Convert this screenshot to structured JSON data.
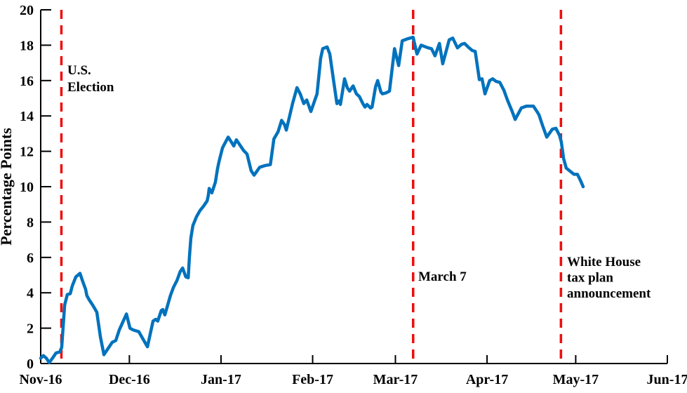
{
  "chart_data": {
    "type": "line",
    "title": "",
    "xlabel": "",
    "ylabel": "Percentage Points",
    "x_unit": "days since Nov 1, 2016",
    "xlim": [
      0,
      212
    ],
    "ylim": [
      0,
      20
    ],
    "grid": false,
    "legend": null,
    "colors": {
      "line": "#0072BD",
      "event_line": "#EE0E0E",
      "axis": "#000000",
      "text": "#000000",
      "background": "#FFFFFF"
    },
    "y_ticks": [
      0,
      2,
      4,
      6,
      8,
      10,
      12,
      14,
      16,
      18,
      20
    ],
    "x_ticks": [
      {
        "day": 0,
        "label": "Nov-16"
      },
      {
        "day": 30,
        "label": "Dec-16"
      },
      {
        "day": 61,
        "label": "Jan-17"
      },
      {
        "day": 92,
        "label": "Feb-17"
      },
      {
        "day": 120,
        "label": "Mar-17"
      },
      {
        "day": 151,
        "label": "Apr-17"
      },
      {
        "day": 181,
        "label": "May-17"
      },
      {
        "day": 212,
        "label": "Jun-17"
      }
    ],
    "events": [
      {
        "day": 7,
        "label_lines": [
          "U.S.",
          "Election"
        ]
      },
      {
        "day": 126,
        "label_lines": [
          "March 7"
        ]
      },
      {
        "day": 176,
        "label_lines": [
          "White House",
          "tax plan",
          "announcement"
        ]
      }
    ],
    "series": [
      {
        "name": "percentage-points-line",
        "points": [
          [
            0,
            0.3
          ],
          [
            0.9,
            0.45
          ],
          [
            1.9,
            0.3
          ],
          [
            2.9,
            0.05
          ],
          [
            4,
            0.3
          ],
          [
            5.2,
            0.6
          ],
          [
            6.4,
            0.65
          ],
          [
            7.1,
            0.9
          ],
          [
            8.1,
            3.3
          ],
          [
            9,
            3.9
          ],
          [
            10,
            3.95
          ],
          [
            10.7,
            4.4
          ],
          [
            11.9,
            4.9
          ],
          [
            13.3,
            5.1
          ],
          [
            14.2,
            4.65
          ],
          [
            15.2,
            4.2
          ],
          [
            15.6,
            3.85
          ],
          [
            16.4,
            3.6
          ],
          [
            17.6,
            3.3
          ],
          [
            19,
            2.9
          ],
          [
            20.2,
            1.5
          ],
          [
            21.4,
            0.5
          ],
          [
            23,
            0.9
          ],
          [
            24.2,
            1.2
          ],
          [
            25.4,
            1.3
          ],
          [
            26.6,
            1.9
          ],
          [
            29,
            2.8
          ],
          [
            30.2,
            2
          ],
          [
            31.3,
            1.9
          ],
          [
            33.2,
            1.8
          ],
          [
            34.9,
            1.3
          ],
          [
            36.1,
            0.95
          ],
          [
            38,
            2.4
          ],
          [
            38.9,
            2.5
          ],
          [
            39.6,
            2.4
          ],
          [
            40.8,
            3
          ],
          [
            41.3,
            3.05
          ],
          [
            42,
            2.75
          ],
          [
            43.9,
            3.85
          ],
          [
            44.9,
            4.3
          ],
          [
            46.1,
            4.7
          ],
          [
            47.2,
            5.2
          ],
          [
            48,
            5.4
          ],
          [
            49.1,
            4.9
          ],
          [
            49.9,
            4.85
          ],
          [
            50.3,
            6
          ],
          [
            50.8,
            7.1
          ],
          [
            51.5,
            7.8
          ],
          [
            52.7,
            8.3
          ],
          [
            53.9,
            8.65
          ],
          [
            55.1,
            8.9
          ],
          [
            56.3,
            9.2
          ],
          [
            56.7,
            9.5
          ],
          [
            57,
            9.9
          ],
          [
            57.9,
            9.65
          ],
          [
            59.1,
            10.25
          ],
          [
            59.8,
            11
          ],
          [
            60.3,
            11.4
          ],
          [
            61.5,
            12.2
          ],
          [
            63.4,
            12.8
          ],
          [
            64.6,
            12.5
          ],
          [
            65.3,
            12.3
          ],
          [
            66.2,
            12.65
          ],
          [
            67.2,
            12.4
          ],
          [
            68.6,
            12.05
          ],
          [
            69.8,
            11.85
          ],
          [
            71.2,
            10.9
          ],
          [
            72.2,
            10.65
          ],
          [
            74.1,
            11.1
          ],
          [
            76,
            11.2
          ],
          [
            77.7,
            11.25
          ],
          [
            78.9,
            12.7
          ],
          [
            80.3,
            13.1
          ],
          [
            81.5,
            13.75
          ],
          [
            82.5,
            13.5
          ],
          [
            83.1,
            13.2
          ],
          [
            85.2,
            14.7
          ],
          [
            86.7,
            15.6
          ],
          [
            87.8,
            15.25
          ],
          [
            89,
            14.7
          ],
          [
            90,
            14.9
          ],
          [
            91.4,
            14.25
          ],
          [
            93.5,
            15.25
          ],
          [
            94.7,
            17.25
          ],
          [
            95.4,
            17.8
          ],
          [
            96.9,
            17.9
          ],
          [
            97.8,
            17.5
          ],
          [
            99,
            16.1
          ],
          [
            100.2,
            14.7
          ],
          [
            100.9,
            14.85
          ],
          [
            101.4,
            14.65
          ],
          [
            102.8,
            16.1
          ],
          [
            103.7,
            15.6
          ],
          [
            104.5,
            15.4
          ],
          [
            105.7,
            15.7
          ],
          [
            106.8,
            15.25
          ],
          [
            107.8,
            15.1
          ],
          [
            109,
            14.7
          ],
          [
            109.7,
            14.5
          ],
          [
            110.4,
            14.65
          ],
          [
            111.6,
            14.45
          ],
          [
            112.1,
            14.5
          ],
          [
            113.3,
            15.65
          ],
          [
            114,
            16
          ],
          [
            115.1,
            15.35
          ],
          [
            115.6,
            15.25
          ],
          [
            116.8,
            15.3
          ],
          [
            118,
            15.4
          ],
          [
            119.7,
            17.8
          ],
          [
            121.1,
            16.85
          ],
          [
            122.3,
            18.25
          ],
          [
            123.9,
            18.35
          ],
          [
            126,
            18.45
          ],
          [
            127.3,
            17.5
          ],
          [
            128.7,
            18
          ],
          [
            131.1,
            17.85
          ],
          [
            132.2,
            17.8
          ],
          [
            133.4,
            17.4
          ],
          [
            134.9,
            18.1
          ],
          [
            136,
            16.95
          ],
          [
            138.2,
            18.3
          ],
          [
            139.4,
            18.4
          ],
          [
            141,
            17.85
          ],
          [
            142.4,
            18.05
          ],
          [
            143.4,
            18.1
          ],
          [
            144.6,
            17.9
          ],
          [
            146,
            17.7
          ],
          [
            147,
            17.65
          ],
          [
            148.4,
            16.05
          ],
          [
            149.3,
            16.1
          ],
          [
            150.3,
            15.25
          ],
          [
            151.9,
            16
          ],
          [
            152.9,
            16.1
          ],
          [
            154.1,
            15.95
          ],
          [
            155.3,
            15.9
          ],
          [
            156.7,
            15.45
          ],
          [
            157.9,
            14.9
          ],
          [
            159.5,
            14.25
          ],
          [
            160.5,
            13.8
          ],
          [
            162.6,
            14.45
          ],
          [
            164.3,
            14.55
          ],
          [
            166.7,
            14.55
          ],
          [
            167.9,
            14.25
          ],
          [
            168.6,
            14.05
          ],
          [
            169.7,
            13.5
          ],
          [
            171.2,
            12.8
          ],
          [
            173.1,
            13.25
          ],
          [
            174.3,
            13.3
          ],
          [
            175.5,
            12.9
          ],
          [
            176.1,
            12.55
          ],
          [
            176.9,
            11.6
          ],
          [
            177.8,
            11.05
          ],
          [
            179.3,
            10.85
          ],
          [
            180.4,
            10.7
          ],
          [
            181.6,
            10.7
          ],
          [
            182.6,
            10.35
          ],
          [
            183.5,
            10
          ]
        ]
      }
    ]
  }
}
